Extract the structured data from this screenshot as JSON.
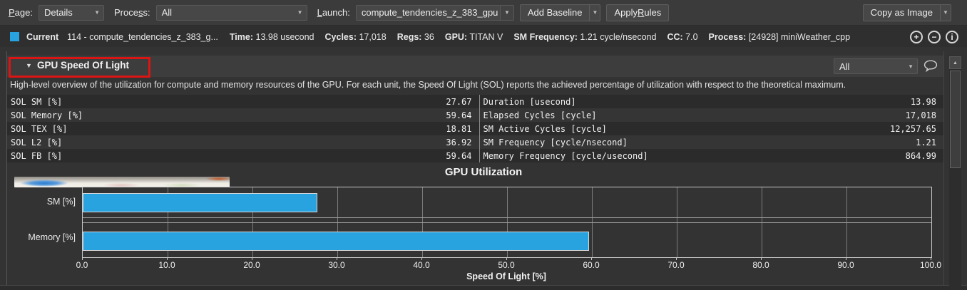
{
  "toolbar": {
    "page_label_parts": [
      "",
      "P",
      "age:"
    ],
    "page_value": "Details",
    "process_label_parts": [
      "Proce",
      "s",
      "s:"
    ],
    "process_value": "All",
    "launch_label_parts": [
      "",
      "L",
      "aunch:"
    ],
    "launch_value": "compute_tendencies_z_383_gpu",
    "add_baseline_label": "Add Baseline",
    "apply_rules_parts": [
      "Apply ",
      "R",
      "ules"
    ],
    "copy_as_image_label": "Copy as Image"
  },
  "current_line": {
    "label": "Current",
    "kernel": "114 - compute_tendencies_z_383_g...",
    "swatch_color": "#29a2e0",
    "fields": [
      {
        "label": "Time:",
        "value": "13.98 usecond"
      },
      {
        "label": "Cycles:",
        "value": "17,018"
      },
      {
        "label": "Regs:",
        "value": "36"
      },
      {
        "label": "GPU:",
        "value": "TITAN V"
      },
      {
        "label": "SM Frequency:",
        "value": "1.21 cycle/nsecond"
      },
      {
        "label": "CC:",
        "value": "7.0"
      },
      {
        "label": "Process:",
        "value": "[24928] miniWeather_cpp"
      }
    ]
  },
  "section": {
    "title": "GPU Speed Of Light",
    "filter_value": "All",
    "description": "High-level overview of the utilization for compute and memory resources of the GPU. For each unit, the Speed Of Light (SOL) reports the achieved percentage of utilization with respect to the theoretical maximum.",
    "annotation_color": "#dc1414"
  },
  "metrics": {
    "left": [
      {
        "name": "SOL SM [%]",
        "value": "27.67"
      },
      {
        "name": "SOL Memory [%]",
        "value": "59.64"
      },
      {
        "name": "SOL TEX [%]",
        "value": "18.81"
      },
      {
        "name": "SOL L2 [%]",
        "value": "36.92"
      },
      {
        "name": "SOL FB [%]",
        "value": "59.64"
      }
    ],
    "right": [
      {
        "name": "Duration [usecond]",
        "value": "13.98"
      },
      {
        "name": "Elapsed Cycles [cycle]",
        "value": "17,018"
      },
      {
        "name": "SM Active Cycles [cycle]",
        "value": "12,257.65"
      },
      {
        "name": "SM Frequency [cycle/nsecond]",
        "value": "1.21"
      },
      {
        "name": "Memory Frequency [cycle/usecond]",
        "value": "864.99"
      }
    ]
  },
  "chart_data": {
    "type": "bar",
    "orientation": "horizontal",
    "title": "GPU Utilization",
    "categories": [
      "SM [%]",
      "Memory [%]"
    ],
    "values": [
      27.67,
      59.64
    ],
    "xlabel": "Speed Of Light [%]",
    "xlim": [
      0,
      100
    ],
    "xticks": [
      0,
      10,
      20,
      30,
      40,
      50,
      60,
      70,
      80,
      90,
      100
    ],
    "xtick_labels": [
      "0.0",
      "10.0",
      "20.0",
      "30.0",
      "40.0",
      "50.0",
      "60.0",
      "70.0",
      "80.0",
      "90.0",
      "100.0"
    ],
    "bar_color": "#29a2e0",
    "grid": true,
    "legend": false
  }
}
